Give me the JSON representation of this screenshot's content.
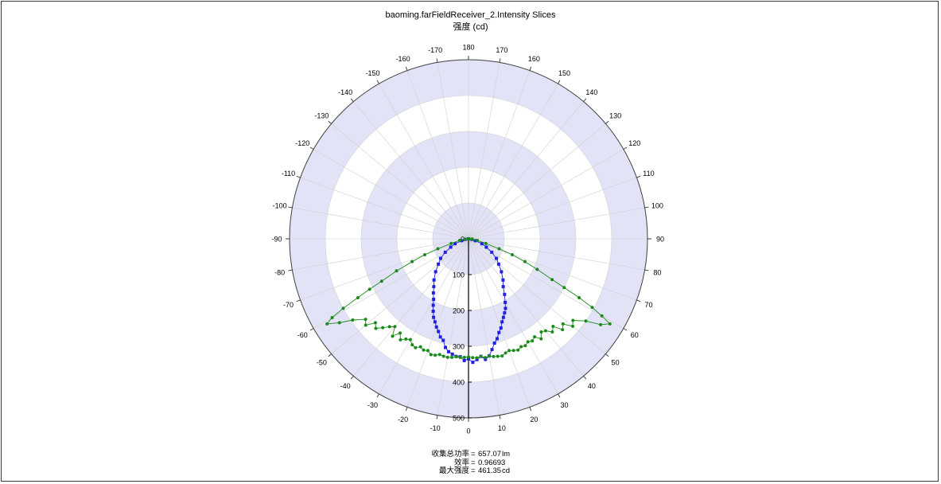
{
  "chart_data": {
    "type": "polar-line",
    "title": "baoming.farFieldReceiver_2.Intensity Slices",
    "subtitle": "强度 (cd)",
    "radial_axis": {
      "range": [
        0,
        500
      ],
      "ticks": [
        "0",
        "100",
        "200",
        "300",
        "400",
        "500"
      ]
    },
    "angular_axis": {
      "ticks": [
        "180",
        "170",
        "160",
        "150",
        "140",
        "130",
        "120",
        "110",
        "100",
        "90",
        "80",
        "70",
        "60",
        "50",
        "40",
        "30",
        "20",
        "10",
        "0",
        "-10",
        "-20",
        "-30",
        "-40",
        "-50",
        "-60",
        "-70",
        "-80",
        "-90",
        "-100",
        "-110",
        "-120",
        "-130",
        "-140",
        "-150",
        "-160",
        "-170"
      ]
    },
    "series": [
      {
        "color": "#2020e0",
        "marker": "square",
        "points": [
          [
            -90,
            0
          ],
          [
            -80,
            10
          ],
          [
            -75,
            20
          ],
          [
            -70,
            40
          ],
          [
            -65,
            55
          ],
          [
            -60,
            75
          ],
          [
            -55,
            95
          ],
          [
            -50,
            110
          ],
          [
            -45,
            130
          ],
          [
            -40,
            150
          ],
          [
            -36,
            165
          ],
          [
            -33,
            180
          ],
          [
            -30,
            195
          ],
          [
            -28,
            210
          ],
          [
            -26,
            225
          ],
          [
            -24,
            240
          ],
          [
            -22,
            250
          ],
          [
            -20,
            262
          ],
          [
            -18,
            272
          ],
          [
            -16,
            285
          ],
          [
            -14,
            292
          ],
          [
            -12,
            310
          ],
          [
            -10,
            320
          ],
          [
            -8,
            325
          ],
          [
            -6,
            330
          ],
          [
            -4,
            330
          ],
          [
            -2,
            340
          ],
          [
            0,
            335
          ],
          [
            2,
            345
          ],
          [
            4,
            338
          ],
          [
            6,
            330
          ],
          [
            8,
            340
          ],
          [
            10,
            332
          ],
          [
            12,
            316
          ],
          [
            14,
            300
          ],
          [
            16,
            290
          ],
          [
            18,
            275
          ],
          [
            20,
            265
          ],
          [
            22,
            250
          ],
          [
            24,
            240
          ],
          [
            26,
            230
          ],
          [
            28,
            220
          ],
          [
            30,
            205
          ],
          [
            33,
            185
          ],
          [
            36,
            165
          ],
          [
            40,
            150
          ],
          [
            45,
            130
          ],
          [
            50,
            110
          ],
          [
            55,
            95
          ],
          [
            60,
            75
          ],
          [
            65,
            55
          ],
          [
            70,
            40
          ],
          [
            75,
            20
          ],
          [
            80,
            10
          ],
          [
            90,
            0
          ]
        ]
      },
      {
        "color": "#1a8a1a",
        "marker": "circle",
        "points": [
          [
            -90,
            0
          ],
          [
            -85,
            10
          ],
          [
            -80,
            25
          ],
          [
            -75,
            50
          ],
          [
            -72,
            90
          ],
          [
            -70,
            130
          ],
          [
            -68,
            170
          ],
          [
            -66,
            220
          ],
          [
            -64,
            270
          ],
          [
            -63,
            310
          ],
          [
            -62,
            350
          ],
          [
            -61,
            400
          ],
          [
            -60,
            440
          ],
          [
            -59,
            461
          ],
          [
            -57,
            430
          ],
          [
            -55,
            395
          ],
          [
            -52,
            365
          ],
          [
            -50,
            375
          ],
          [
            -48,
            350
          ],
          [
            -46,
            360
          ],
          [
            -44,
            345
          ],
          [
            -42,
            330
          ],
          [
            -40,
            320
          ],
          [
            -38,
            345
          ],
          [
            -36,
            325
          ],
          [
            -34,
            340
          ],
          [
            -32,
            330
          ],
          [
            -30,
            325
          ],
          [
            -28,
            335
          ],
          [
            -26,
            338
          ],
          [
            -24,
            330
          ],
          [
            -22,
            335
          ],
          [
            -20,
            332
          ],
          [
            -18,
            340
          ],
          [
            -16,
            338
          ],
          [
            -14,
            333
          ],
          [
            -12,
            335
          ],
          [
            -10,
            336
          ],
          [
            -8,
            334
          ],
          [
            -6,
            331
          ],
          [
            -4,
            332
          ],
          [
            -2,
            331
          ],
          [
            0,
            330
          ],
          [
            2,
            332
          ],
          [
            4,
            333
          ],
          [
            6,
            330
          ],
          [
            8,
            335
          ],
          [
            10,
            332
          ],
          [
            12,
            336
          ],
          [
            14,
            338
          ],
          [
            16,
            340
          ],
          [
            18,
            335
          ],
          [
            20,
            332
          ],
          [
            22,
            336
          ],
          [
            24,
            340
          ],
          [
            26,
            335
          ],
          [
            28,
            338
          ],
          [
            30,
            332
          ],
          [
            32,
            336
          ],
          [
            34,
            330
          ],
          [
            36,
            345
          ],
          [
            38,
            330
          ],
          [
            40,
            335
          ],
          [
            42,
            350
          ],
          [
            44,
            340
          ],
          [
            46,
            365
          ],
          [
            48,
            355
          ],
          [
            50,
            380
          ],
          [
            52,
            370
          ],
          [
            55,
            400
          ],
          [
            57,
            440
          ],
          [
            59,
            461
          ],
          [
            60,
            430
          ],
          [
            61,
            395
          ],
          [
            62,
            350
          ],
          [
            63,
            300
          ],
          [
            64,
            260
          ],
          [
            66,
            210
          ],
          [
            68,
            170
          ],
          [
            70,
            130
          ],
          [
            72,
            90
          ],
          [
            75,
            50
          ],
          [
            80,
            25
          ],
          [
            85,
            10
          ],
          [
            90,
            0
          ]
        ]
      }
    ]
  },
  "stats": [
    {
      "label": "收集总功率",
      "eq": "=",
      "value": "657.07",
      "unit": "lm"
    },
    {
      "label": "效率",
      "eq": "=",
      "value": "0.96693",
      "unit": ""
    },
    {
      "label": "最大强度",
      "eq": "=",
      "value": "461.35",
      "unit": "cd"
    }
  ]
}
